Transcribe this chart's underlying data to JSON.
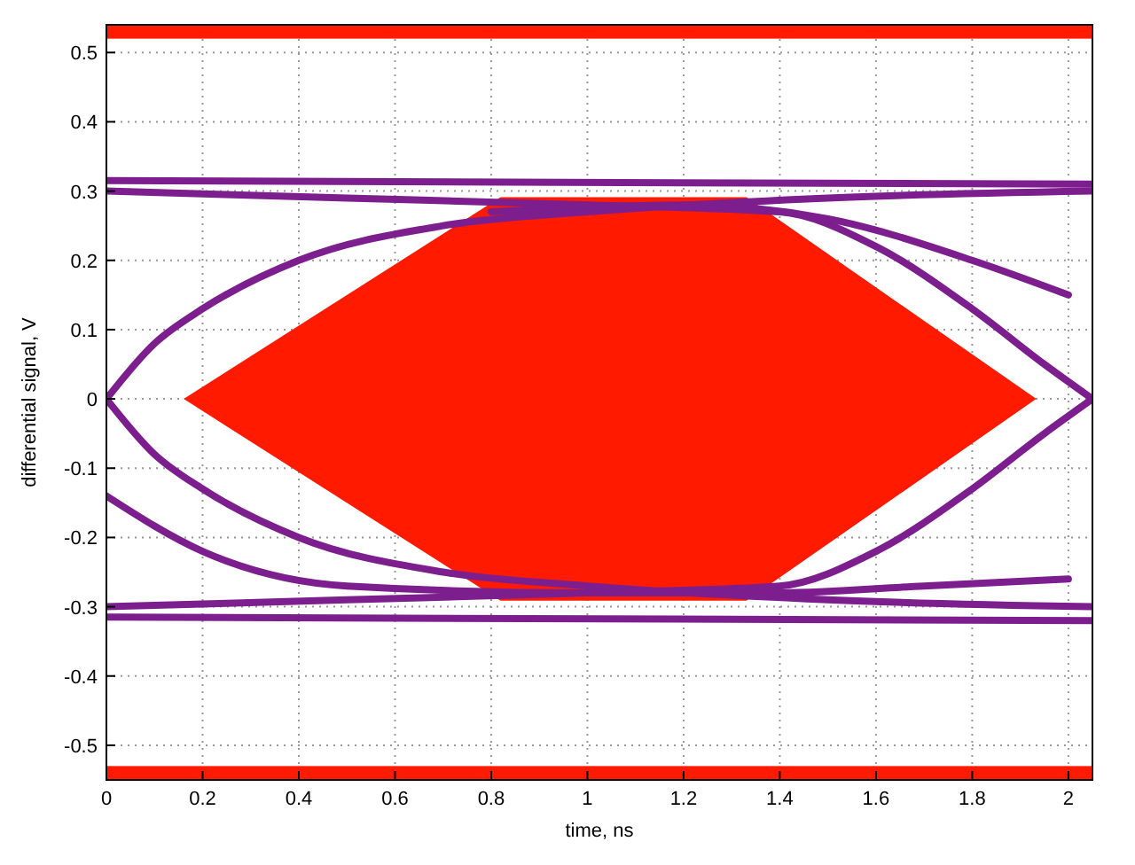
{
  "chart_data": {
    "type": "line",
    "xlabel": "time, ns",
    "ylabel": "differential signal, V",
    "xlim": [
      0,
      2.05
    ],
    "ylim": [
      -0.55,
      0.54
    ],
    "xticks": [
      0,
      0.2,
      0.4,
      0.6,
      0.8,
      1,
      1.2,
      1.4,
      1.6,
      1.8,
      2
    ],
    "yticks": [
      -0.5,
      -0.4,
      -0.3,
      -0.2,
      -0.1,
      0,
      0.1,
      0.2,
      0.3,
      0.4,
      0.5
    ],
    "grid": true,
    "line_style": "solid",
    "marker": "none",
    "bands": [
      {
        "axis": "y",
        "from": 0.52,
        "to": 0.54,
        "color": "#ff1a00"
      },
      {
        "axis": "y",
        "from": -0.55,
        "to": -0.53,
        "color": "#ff1a00"
      }
    ],
    "series": [
      {
        "type": "area",
        "color": "#ff1a00",
        "x": [
          0.164,
          0.82,
          1.33,
          1.93,
          1.33,
          0.82,
          0.164
        ],
        "values": [
          0,
          0.29,
          0.29,
          0,
          -0.29,
          -0.29,
          0
        ]
      },
      {
        "color": "#7d1e8e",
        "x": [
          0,
          2.05
        ],
        "values": [
          0.315,
          0.31
        ]
      },
      {
        "color": "#7d1e8e",
        "x": [
          0,
          2.05
        ],
        "values": [
          -0.315,
          -0.32
        ]
      },
      {
        "color": "#7d1e8e",
        "x": [
          0,
          0.1,
          0.2,
          0.4,
          0.7,
          1,
          1.5,
          2.05
        ],
        "values": [
          0,
          0.08,
          0.13,
          0.2,
          0.25,
          0.27,
          0.29,
          0.3
        ]
      },
      {
        "color": "#7d1e8e",
        "x": [
          0,
          0.1,
          0.2,
          0.4,
          0.7,
          1,
          1.5,
          2.05
        ],
        "values": [
          0,
          -0.08,
          -0.13,
          -0.2,
          -0.25,
          -0.27,
          -0.29,
          -0.3
        ]
      },
      {
        "color": "#7d1e8e",
        "x": [
          0,
          0.5,
          1,
          1.4,
          1.6,
          1.8,
          1.95,
          2.05
        ],
        "values": [
          0.3,
          0.29,
          0.28,
          0.27,
          0.22,
          0.13,
          0.05,
          0
        ]
      },
      {
        "color": "#7d1e8e",
        "x": [
          0,
          0.5,
          1,
          1.4,
          1.6,
          1.8,
          1.95,
          2.05
        ],
        "values": [
          -0.3,
          -0.29,
          -0.28,
          -0.27,
          -0.22,
          -0.13,
          -0.05,
          0
        ]
      },
      {
        "color": "#7d1e8e",
        "x": [
          0,
          0.2,
          0.5,
          1,
          1.4,
          1.7,
          2
        ],
        "values": [
          -0.14,
          -0.22,
          -0.27,
          -0.28,
          -0.28,
          -0.27,
          -0.26
        ]
      },
      {
        "color": "#7d1e8e",
        "x": [
          0.8,
          1.2,
          1.5,
          1.8,
          2
        ],
        "values": [
          0.27,
          0.28,
          0.26,
          0.2,
          0.15
        ]
      }
    ]
  }
}
